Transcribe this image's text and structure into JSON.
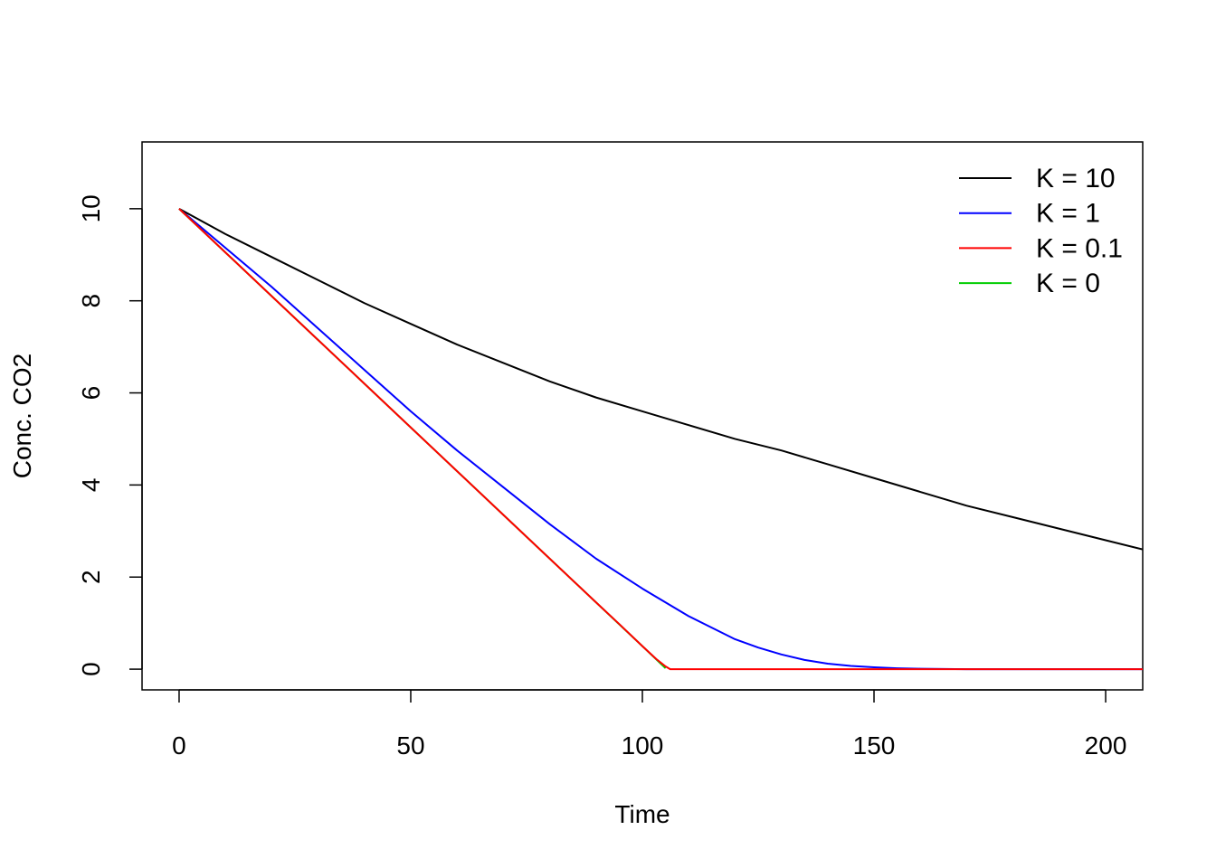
{
  "chart_data": {
    "type": "line",
    "title": "",
    "xlabel": "Time",
    "ylabel": "Conc. CO2",
    "xlim": [
      -8,
      208
    ],
    "ylim": [
      -0.45,
      11.45
    ],
    "xticks": [
      0,
      50,
      100,
      150,
      200
    ],
    "yticks": [
      0,
      2,
      4,
      6,
      8,
      10
    ],
    "grid": false,
    "legend_position": "top-right",
    "series": [
      {
        "name": "K = 10",
        "color": "#000000",
        "x": [
          0,
          10,
          20,
          30,
          40,
          50,
          60,
          70,
          80,
          90,
          100,
          110,
          120,
          130,
          140,
          150,
          160,
          170,
          180,
          190,
          200,
          208
        ],
        "y": [
          10,
          9.45,
          8.95,
          8.45,
          7.95,
          7.5,
          7.05,
          6.65,
          6.25,
          5.9,
          5.6,
          5.3,
          5.0,
          4.75,
          4.45,
          4.15,
          3.85,
          3.55,
          3.3,
          3.05,
          2.8,
          2.6
        ]
      },
      {
        "name": "K = 1",
        "color": "#0000ff",
        "x": [
          0,
          10,
          20,
          30,
          40,
          50,
          60,
          70,
          80,
          90,
          100,
          105,
          110,
          115,
          120,
          125,
          130,
          135,
          140,
          145,
          150,
          155,
          160,
          165,
          170,
          180,
          190,
          200,
          208
        ],
        "y": [
          10,
          9.15,
          8.3,
          7.4,
          6.5,
          5.6,
          4.75,
          3.95,
          3.15,
          2.4,
          1.75,
          1.45,
          1.15,
          0.9,
          0.65,
          0.47,
          0.32,
          0.2,
          0.12,
          0.07,
          0.04,
          0.02,
          0.01,
          0.005,
          0,
          0,
          0,
          0,
          0
        ]
      },
      {
        "name": "K = 0.1",
        "color": "#ff0000",
        "x": [
          0,
          10,
          20,
          30,
          40,
          50,
          60,
          70,
          80,
          90,
          95,
          100,
          103,
          105,
          106,
          110,
          150,
          200,
          208
        ],
        "y": [
          10,
          9.05,
          8.1,
          7.15,
          6.2,
          5.25,
          4.3,
          3.35,
          2.4,
          1.45,
          0.98,
          0.5,
          0.22,
          0.06,
          0,
          0,
          0,
          0,
          0
        ]
      },
      {
        "name": "K = 0",
        "color": "#00cd00",
        "x": [
          0,
          10,
          20,
          30,
          40,
          50,
          60,
          70,
          80,
          90,
          100,
          105
        ],
        "y": [
          10,
          9.05,
          8.1,
          7.15,
          6.2,
          5.25,
          4.3,
          3.35,
          2.4,
          1.45,
          0.5,
          0.02
        ]
      }
    ]
  }
}
